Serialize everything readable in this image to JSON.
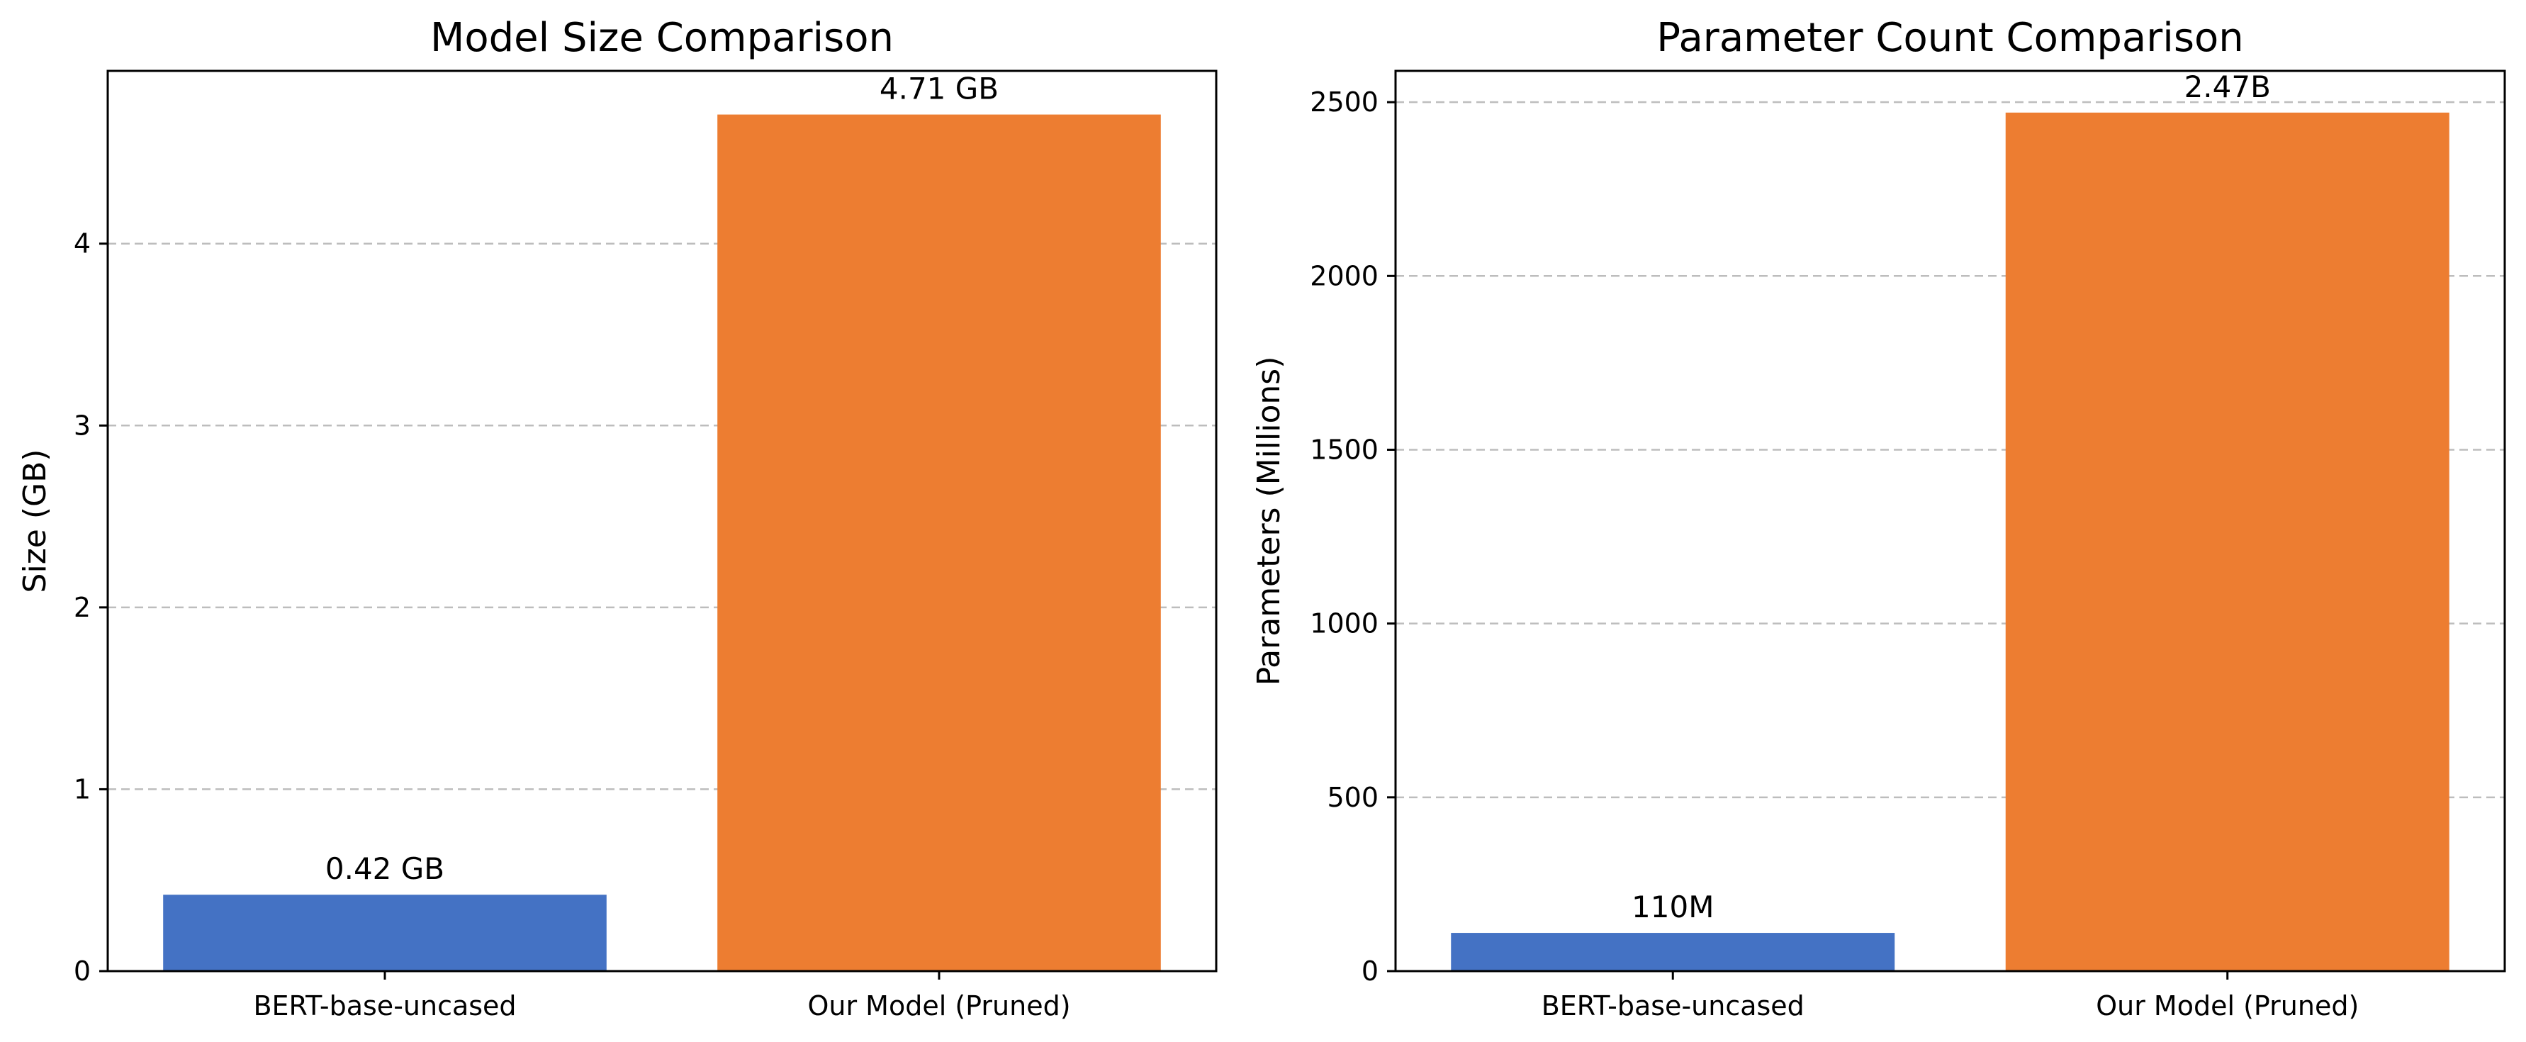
{
  "chart_data": [
    {
      "type": "bar",
      "title": "Model Size Comparison",
      "xlabel": "",
      "ylabel": "Size (GB)",
      "categories": [
        "BERT-base-uncased",
        "Our Model (Pruned)"
      ],
      "values": [
        0.42,
        4.71
      ],
      "data_labels": [
        "0.42 GB",
        "4.71 GB"
      ],
      "colors": [
        "#4472c4",
        "#ed7d31"
      ],
      "ylim": [
        0,
        4.95
      ],
      "yticks": [
        0,
        1,
        2,
        3,
        4
      ],
      "grid": "y-dashed"
    },
    {
      "type": "bar",
      "title": "Parameter Count Comparison",
      "xlabel": "",
      "ylabel": "Parameters (Millions)",
      "categories": [
        "BERT-base-uncased",
        "Our Model (Pruned)"
      ],
      "values": [
        110,
        2470
      ],
      "data_labels": [
        "110M",
        "2.47B"
      ],
      "colors": [
        "#4472c4",
        "#ed7d31"
      ],
      "ylim": [
        0,
        2590
      ],
      "yticks": [
        0,
        500,
        1000,
        1500,
        2000,
        2500
      ],
      "grid": "y-dashed"
    }
  ]
}
